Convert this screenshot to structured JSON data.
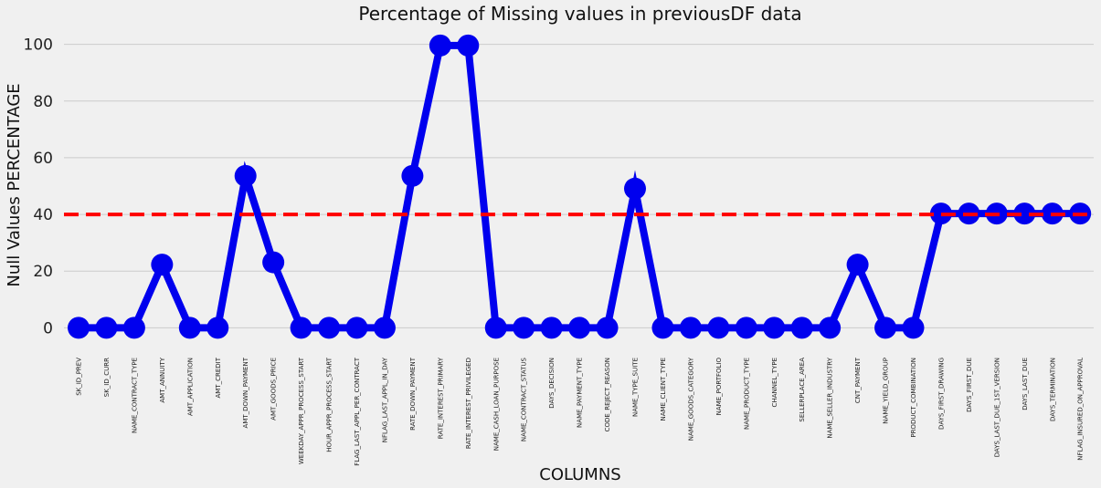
{
  "chart_data": {
    "type": "line",
    "title": "Percentage of Missing values in previousDF data",
    "xlabel": "COLUMNS",
    "ylabel": "Null Values PERCENTAGE",
    "ylim": [
      -6,
      106
    ],
    "yticks": [
      0,
      20,
      40,
      60,
      80,
      100
    ],
    "grid": "horizontal",
    "threshold": 40,
    "colors": {
      "line": "#0000ee",
      "marker": "#0000ee",
      "threshold": "#ff0000",
      "grid": "#cbcbcb",
      "background": "#f0f0f0"
    },
    "categories": [
      "SK_ID_PREV",
      "SK_ID_CURR",
      "NAME_CONTRACT_TYPE",
      "AMT_ANNUITY",
      "AMT_APPLICATION",
      "AMT_CREDIT",
      "AMT_DOWN_PAYMENT",
      "AMT_GOODS_PRICE",
      "WEEKDAY_APPR_PROCESS_START",
      "HOUR_APPR_PROCESS_START",
      "FLAG_LAST_APPL_PER_CONTRACT",
      "NFLAG_LAST_APPL_IN_DAY",
      "RATE_DOWN_PAYMENT",
      "RATE_INTEREST_PRIMARY",
      "RATE_INTEREST_PRIVILEGED",
      "NAME_CASH_LOAN_PURPOSE",
      "NAME_CONTRACT_STATUS",
      "DAYS_DECISION",
      "NAME_PAYMENT_TYPE",
      "CODE_REJECT_REASON",
      "NAME_TYPE_SUITE",
      "NAME_CLIENT_TYPE",
      "NAME_GOODS_CATEGORY",
      "NAME_PORTFOLIO",
      "NAME_PRODUCT_TYPE",
      "CHANNEL_TYPE",
      "SELLERPLACE_AREA",
      "NAME_SELLER_INDUSTRY",
      "CNT_PAYMENT",
      "NAME_YIELD_GROUP",
      "PRODUCT_COMBINATION",
      "DAYS_FIRST_DRAWING",
      "DAYS_FIRST_DUE",
      "DAYS_LAST_DUE_1ST_VERSION",
      "DAYS_LAST_DUE",
      "DAYS_TERMINATION",
      "NFLAG_INSURED_ON_APPROVAL"
    ],
    "values": [
      0,
      0,
      0,
      22.3,
      0,
      0,
      53.6,
      23.1,
      0,
      0,
      0,
      0,
      53.6,
      99.6,
      99.6,
      0,
      0,
      0,
      0,
      0,
      49.1,
      0,
      0,
      0,
      0,
      0,
      0,
      0,
      22.3,
      0,
      0,
      40.3,
      40.3,
      40.3,
      40.3,
      40.3,
      40.3
    ]
  }
}
